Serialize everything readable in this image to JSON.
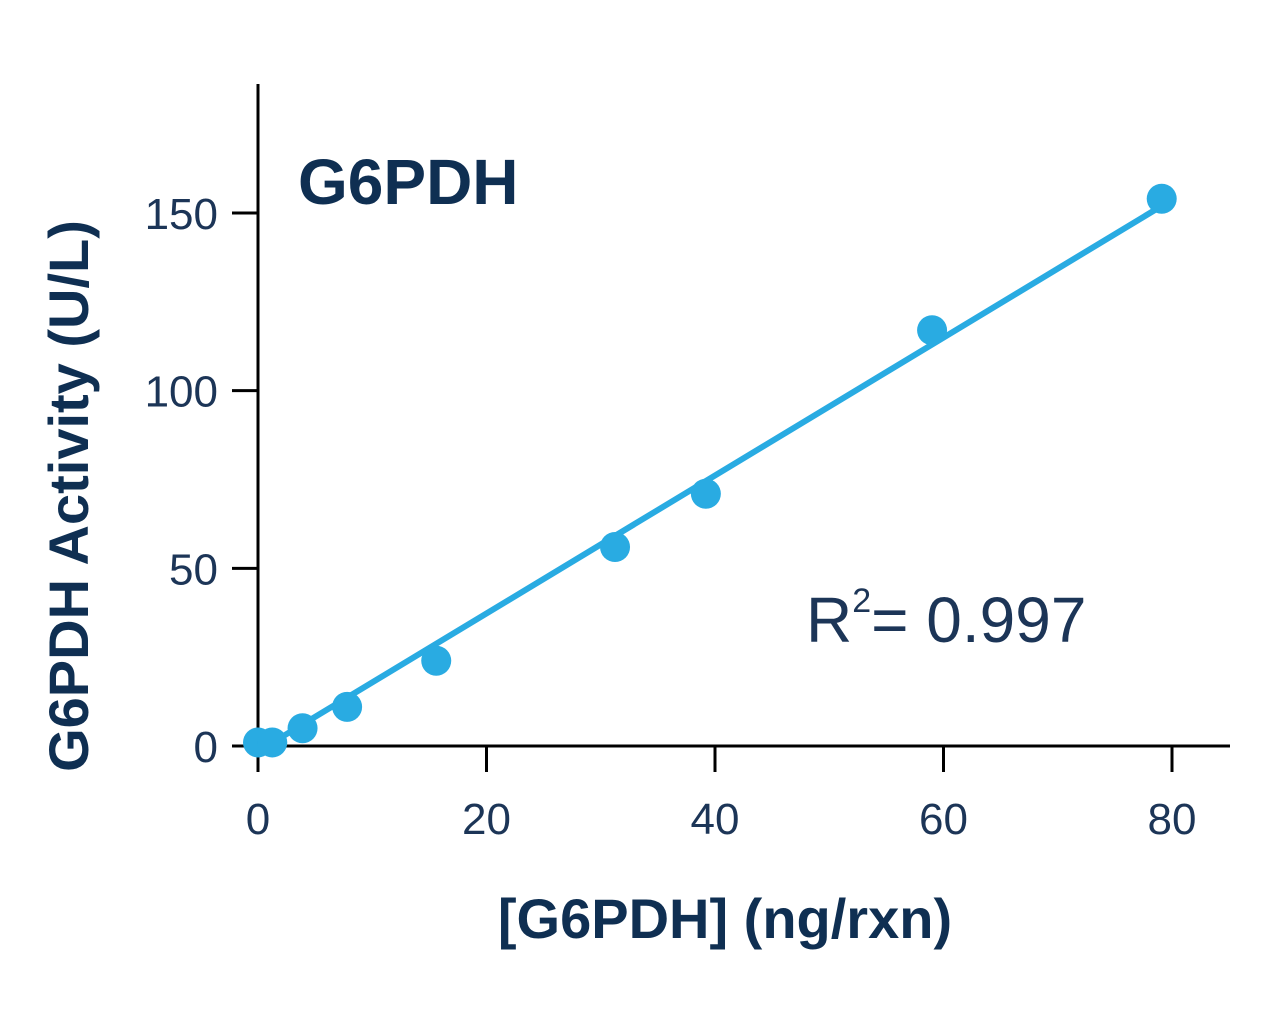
{
  "chart_data": {
    "type": "scatter",
    "title": "G6PDH",
    "xlabel": "[G6PDH] (ng/rxn)",
    "ylabel": "G6PDH Activity (U/L)",
    "xlim": [
      0,
      85
    ],
    "ylim": [
      0,
      185
    ],
    "x_ticks": [
      "0",
      "20",
      "40",
      "60",
      "80"
    ],
    "y_ticks": [
      "0",
      "50",
      "100",
      "150"
    ],
    "grid": false,
    "series": [
      {
        "x": [
          0,
          1.25,
          3.9,
          7.8,
          15.6,
          31.25,
          39.2,
          59.0,
          79.1
        ],
        "y": [
          1,
          1,
          5,
          11,
          24,
          56,
          71,
          117,
          154
        ],
        "color": "#29abe2"
      }
    ],
    "fit_line": {
      "x": [
        0,
        79.1
      ],
      "y": [
        -1.5,
        152
      ],
      "color": "#29abe2"
    },
    "annotation": {
      "prefix": "R",
      "superscript": "2",
      "suffix": "= 0.997"
    }
  }
}
